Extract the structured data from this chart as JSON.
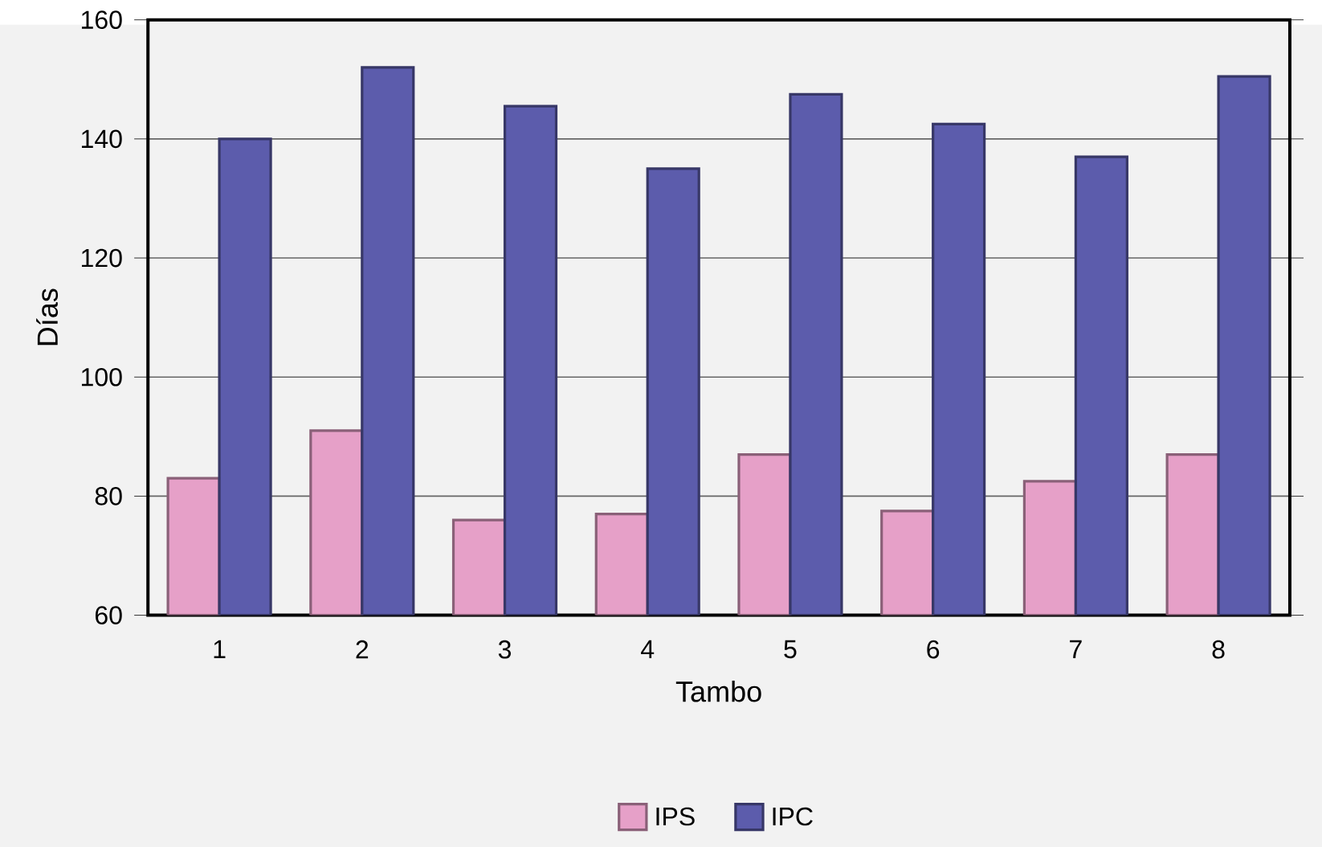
{
  "chart_data": {
    "type": "bar",
    "xlabel": "Tambo",
    "ylabel": "Días",
    "categories": [
      "1",
      "2",
      "3",
      "4",
      "5",
      "6",
      "7",
      "8"
    ],
    "series": [
      {
        "name": "IPS",
        "color": "#e6a0c8",
        "values": [
          83,
          91,
          76,
          77,
          87,
          77.5,
          82.5,
          87
        ]
      },
      {
        "name": "IPC",
        "color": "#5c5cac",
        "values": [
          140,
          152,
          145.5,
          135,
          147.5,
          142.5,
          137,
          150.5
        ]
      }
    ],
    "ylim": [
      60,
      160
    ],
    "yticks": [
      60,
      80,
      100,
      120,
      140,
      160
    ],
    "grid": "y",
    "legend": "bottom"
  }
}
